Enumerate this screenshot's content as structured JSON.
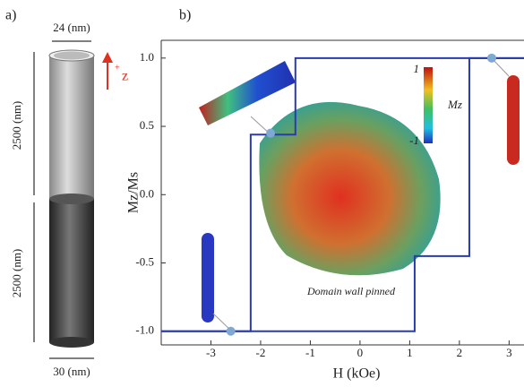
{
  "panel_a": {
    "label": "a)",
    "inner_diameter": "24 (nm)",
    "axis_sign": "+",
    "axis_name": "z",
    "segment_lengths": [
      "2500 (nm)",
      "2500 (nm)"
    ],
    "outer_diameter": "30 (nm)"
  },
  "chart_data": {
    "type": "line",
    "panel_label": "b)",
    "xlabel": "H (kOe)",
    "ylabel": "Mz/Ms",
    "xlim": [
      -4,
      3.3
    ],
    "ylim": [
      -1.1,
      1.13
    ],
    "xticks": [
      -3,
      -2,
      -1,
      0,
      1,
      2,
      3
    ],
    "yticks": [
      {
        "value": 1,
        "label": "1.0"
      },
      0.5,
      {
        "value": 0,
        "label": "0.0"
      },
      -0.5,
      {
        "value": -1,
        "label": "-1.0"
      }
    ],
    "series": [
      {
        "color": "#2a3bb0",
        "x": [
          -4,
          -2.2,
          -2.2,
          -1.3,
          -1.3,
          3.3
        ],
        "values": [
          -1,
          -1,
          0.44,
          0.44,
          1,
          1
        ]
      },
      {
        "color": "#2a3bb0",
        "x": [
          3.3,
          2.2,
          2.2,
          1.1,
          1.1,
          -4
        ],
        "values": [
          1,
          1,
          -0.45,
          -0.45,
          -1,
          -1
        ]
      }
    ],
    "markers": {
      "color": "#7fa8d4",
      "x": [
        -2.6,
        -1.8,
        2.65
      ],
      "values": [
        -1,
        0.45,
        1
      ]
    },
    "colorbar": {
      "label": "Mz",
      "ticks": [
        1,
        -1
      ]
    },
    "annotation": "Domain wall pinned"
  }
}
